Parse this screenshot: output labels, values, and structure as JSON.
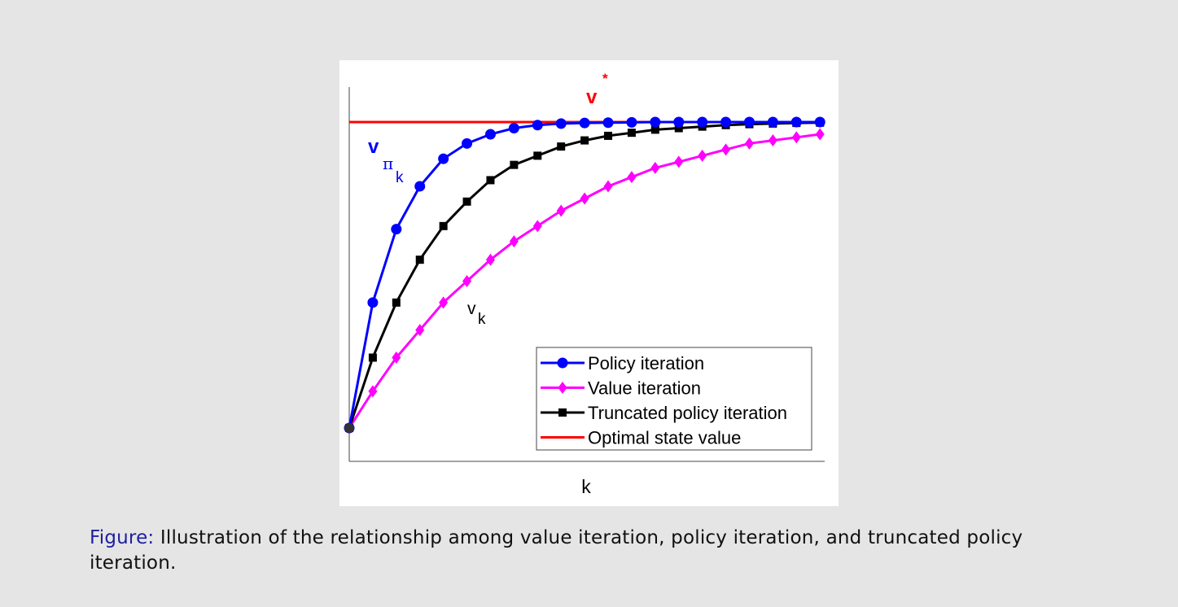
{
  "caption": {
    "label": "Figure:",
    "text": "Illustration of the relationship among value iteration, policy iteration, and truncated policy iteration."
  },
  "chart_data": {
    "type": "line",
    "xlabel": "k",
    "ylabel": "",
    "ticks_shown": false,
    "x": [
      0,
      1,
      2,
      3,
      4,
      5,
      6,
      7,
      8,
      9,
      10,
      11,
      12,
      13,
      14,
      15,
      16,
      17,
      18,
      19,
      20
    ],
    "xlim": [
      0,
      20.2
    ],
    "ylim": [
      0,
      1.1
    ],
    "legend_position": "bottom-right",
    "series": [
      {
        "name": "Policy iteration",
        "color": "#0000ff",
        "marker": "circle",
        "values": [
          0.0,
          0.41,
          0.65,
          0.79,
          0.88,
          0.93,
          0.96,
          0.98,
          0.99,
          0.995,
          0.997,
          0.998,
          0.999,
          1.0,
          1.0,
          1.0,
          1.0,
          1.0,
          1.0,
          1.0,
          1.0
        ]
      },
      {
        "name": "Value iteration",
        "color": "#ff00ff",
        "marker": "diamond",
        "values": [
          0.0,
          0.12,
          0.23,
          0.32,
          0.41,
          0.48,
          0.55,
          0.61,
          0.66,
          0.71,
          0.75,
          0.79,
          0.82,
          0.85,
          0.87,
          0.89,
          0.91,
          0.93,
          0.94,
          0.95,
          0.96
        ]
      },
      {
        "name": "Truncated policy iteration",
        "color": "#000000",
        "marker": "square",
        "values": [
          0.0,
          0.23,
          0.41,
          0.55,
          0.66,
          0.74,
          0.81,
          0.86,
          0.89,
          0.92,
          0.94,
          0.955,
          0.965,
          0.975,
          0.98,
          0.985,
          0.99,
          0.993,
          0.995,
          0.997,
          0.998
        ]
      },
      {
        "name": "Optimal state value",
        "color": "#ff0000",
        "marker": "none",
        "values": [
          1.0,
          1.0,
          1.0,
          1.0,
          1.0,
          1.0,
          1.0,
          1.0,
          1.0,
          1.0,
          1.0,
          1.0,
          1.0,
          1.0,
          1.0,
          1.0,
          1.0,
          1.0,
          1.0,
          1.0,
          1.0
        ]
      }
    ],
    "annotations": {
      "vstar": {
        "base": "v",
        "sup": "*",
        "color": "#ff0000"
      },
      "vpi": {
        "base": "v",
        "sub": "π",
        "subsub": "k",
        "color": "#0000ff"
      },
      "vk": {
        "base": "v",
        "sub": "k",
        "color": "#000000"
      }
    }
  }
}
